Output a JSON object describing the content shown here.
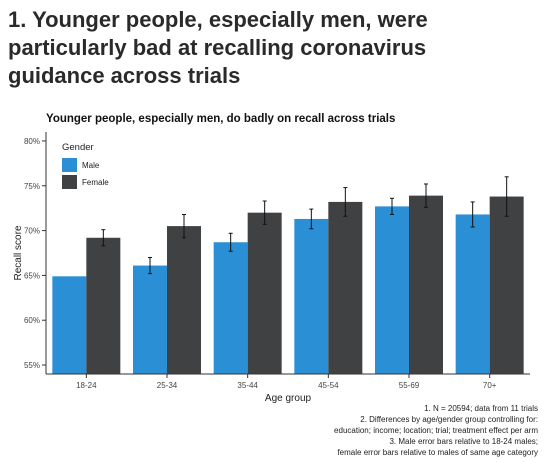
{
  "headline": {
    "line1": "1. Younger people, especially men, were",
    "line2": "particularly bad at recalling coronavirus",
    "line3": "guidance across trials"
  },
  "chart_data": {
    "type": "bar",
    "title": "Younger people, especially men, do badly on recall across trials",
    "xlabel": "Age group",
    "ylabel": "Recall score",
    "categories": [
      "18-24",
      "25-34",
      "35-44",
      "45-54",
      "55-69",
      "70+"
    ],
    "ylim": [
      0.54,
      0.81
    ],
    "yticks": [
      0.55,
      0.6,
      0.65,
      0.7,
      0.75,
      0.8
    ],
    "ytick_labels": [
      "55%",
      "60%",
      "65%",
      "70%",
      "75%",
      "80%"
    ],
    "grid": false,
    "legend": {
      "title": "Gender",
      "placement": "top-left"
    },
    "series": [
      {
        "name": "Male",
        "color": "#2b8fd6",
        "values": [
          0.649,
          0.661,
          0.687,
          0.713,
          0.727,
          0.718
        ],
        "errors": [
          null,
          0.009,
          0.01,
          0.011,
          0.009,
          0.014
        ]
      },
      {
        "name": "Female",
        "color": "#404142",
        "values": [
          0.692,
          0.705,
          0.72,
          0.732,
          0.739,
          0.738
        ],
        "errors": [
          0.009,
          0.013,
          0.013,
          0.016,
          0.013,
          0.022
        ]
      }
    ]
  },
  "notes": [
    "1. N = 20594; data from 11 trials",
    "2. Differences by age/gender group controlling for:",
    "education; income; location; trial; treatment effect per arm",
    "3. Male error bars relative to 18-24 males;",
    "female error bars relative to males of same age category"
  ]
}
